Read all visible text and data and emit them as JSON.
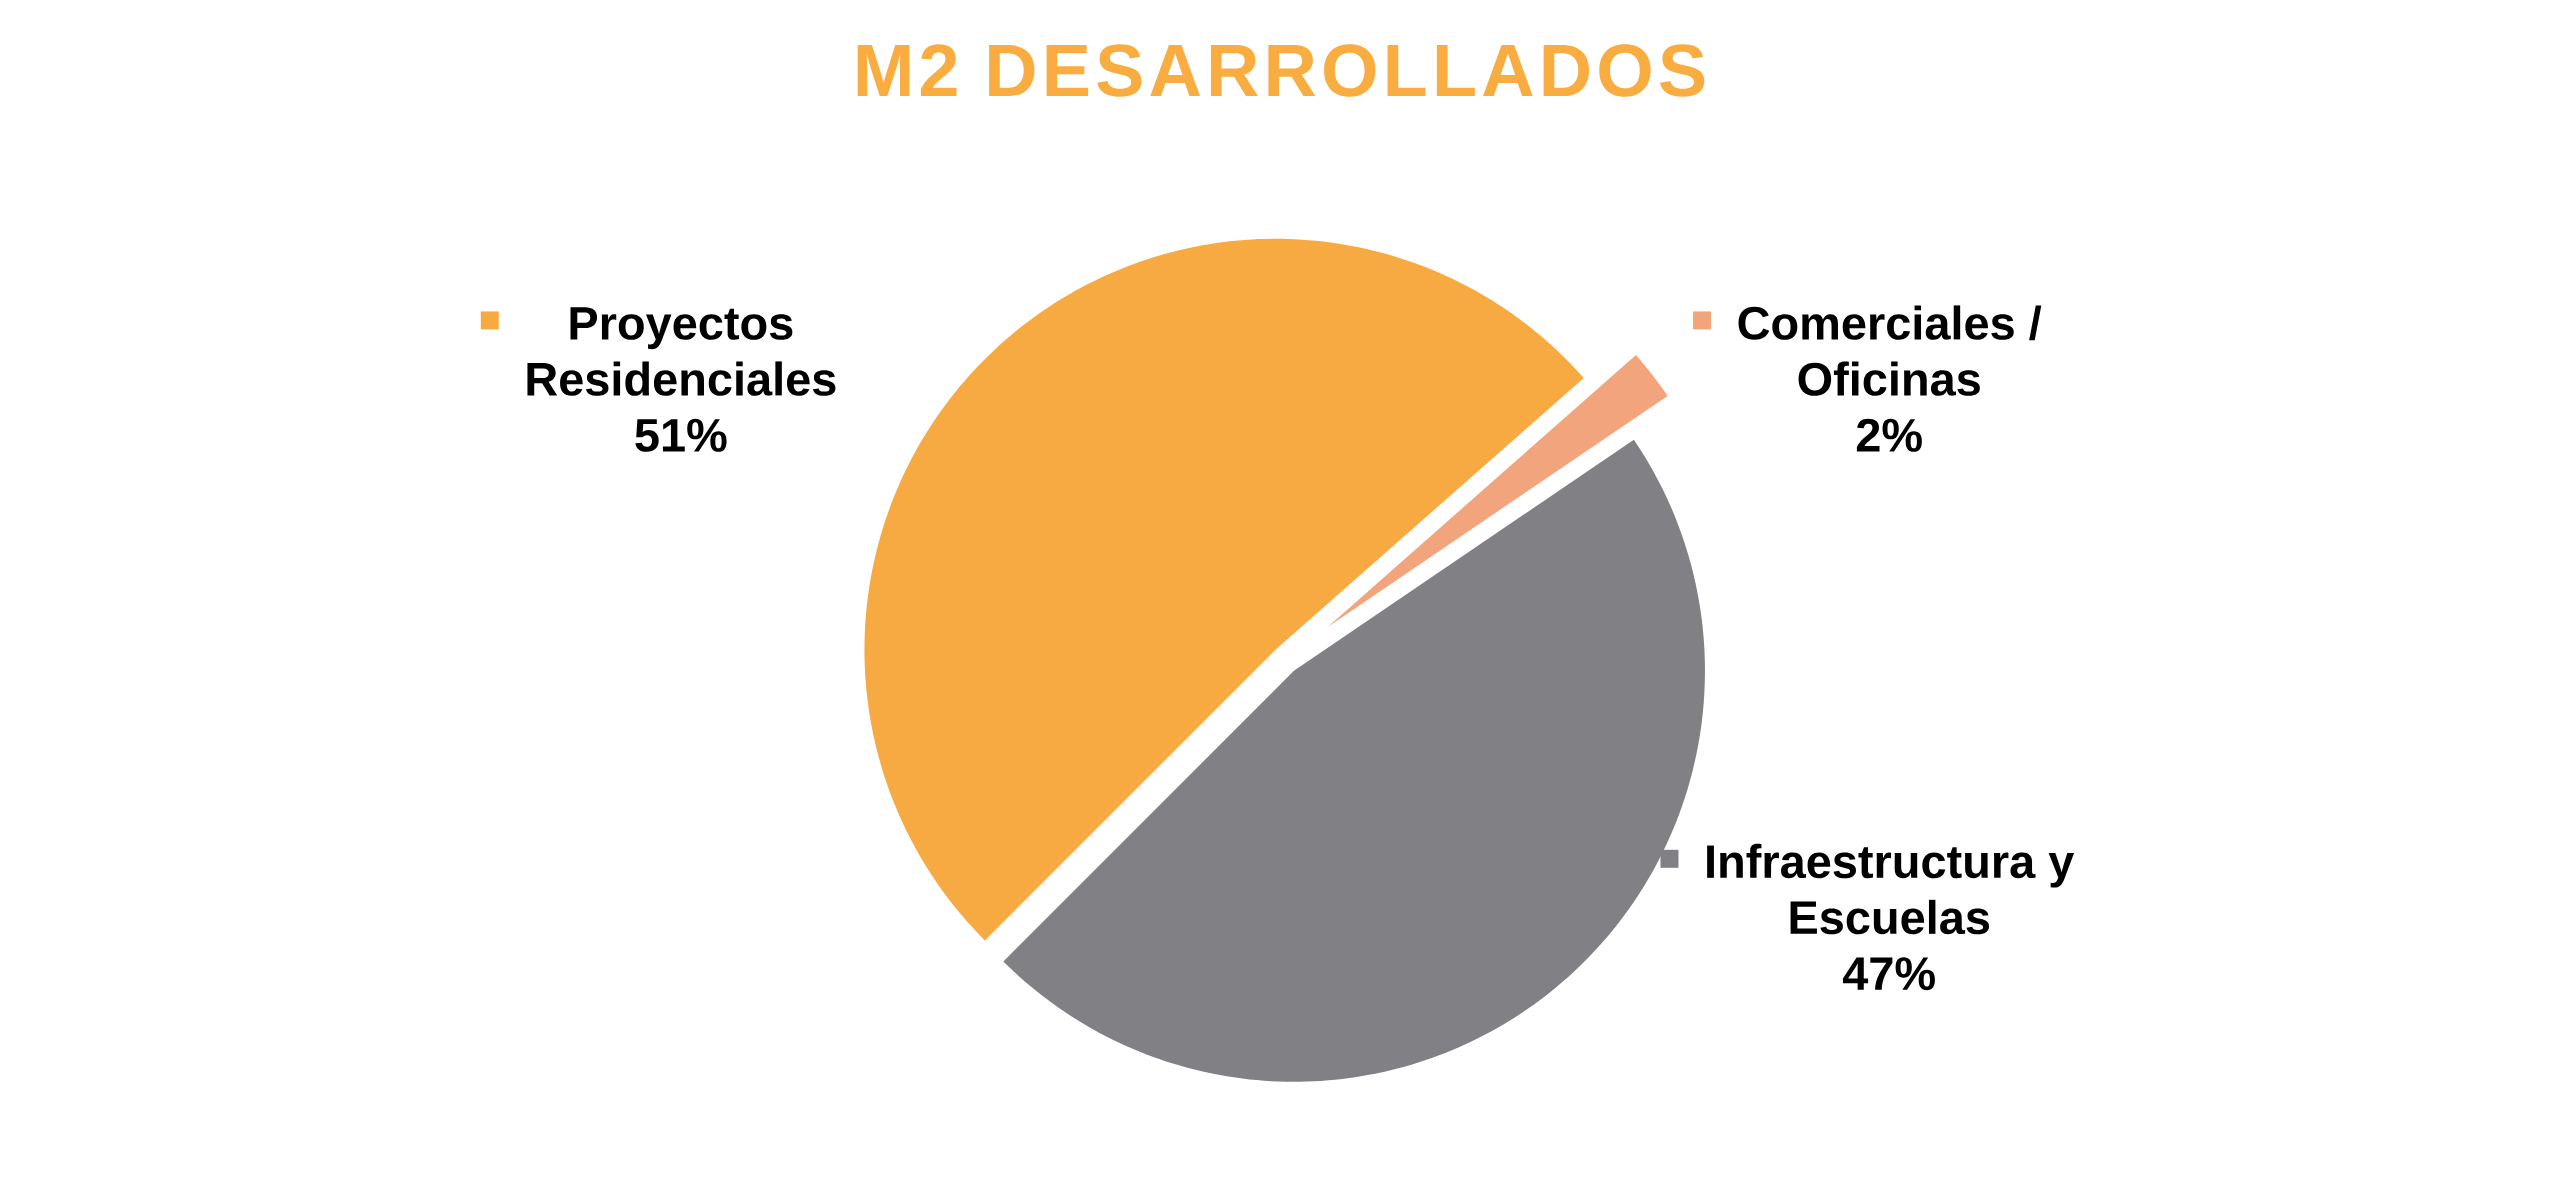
{
  "chart_data": {
    "type": "pie",
    "title": "M2 DESARROLLADOS",
    "categories": [
      "Proyectos Residenciales",
      "Comerciales / Oficinas",
      "Infraestructura y Escuelas"
    ],
    "values": [
      51,
      2,
      47
    ],
    "value_labels": [
      "51%",
      "2%",
      "47%"
    ],
    "colors": [
      "#F7AA41",
      "#F2A47C",
      "#808085"
    ],
    "legend": "right"
  }
}
